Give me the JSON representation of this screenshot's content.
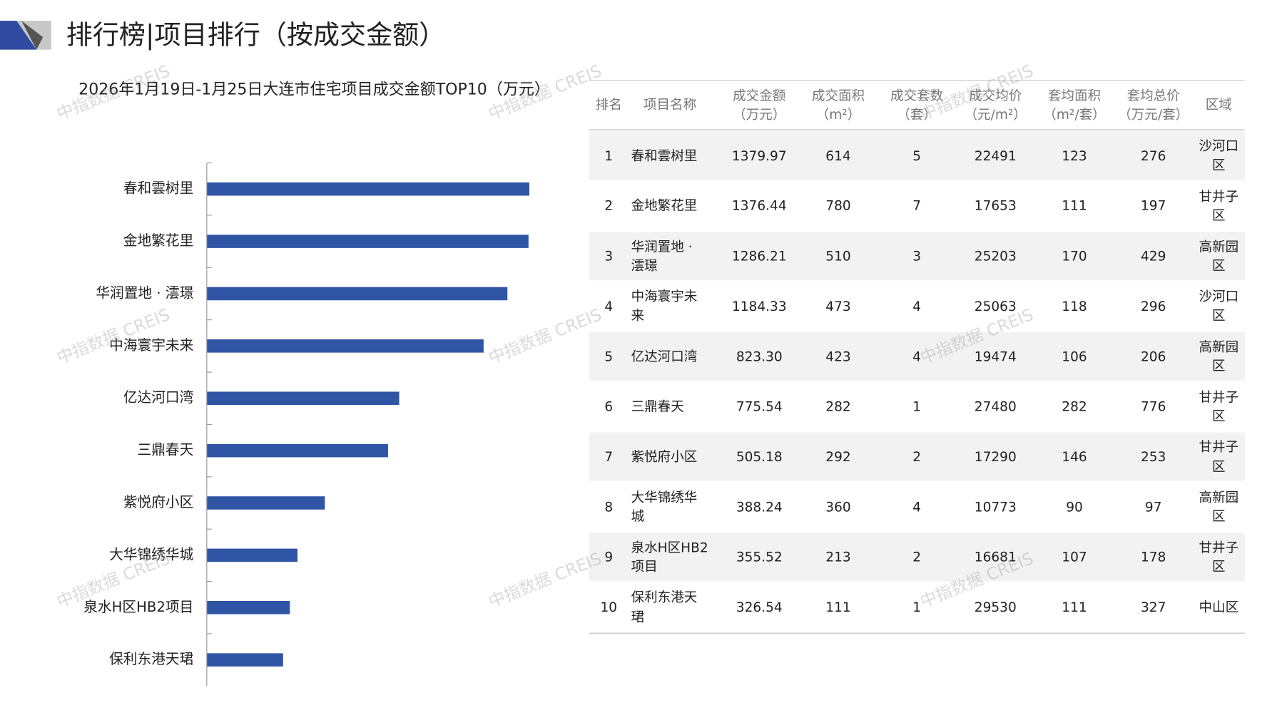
{
  "header": {
    "title": "排行榜|项目排行（按成交金额）"
  },
  "watermark": "中指数据 CREIS",
  "chart_data": {
    "type": "hbar",
    "title": "2026年1月19日-1月25日大连市住宅项目成交金额TOP10（万元）",
    "categories": [
      "春和雲树里",
      "金地繁花里",
      "华润置地 · 澐璟",
      "中海寰宇未来",
      "亿达河口湾",
      "三鼎春天",
      "紫悦府小区",
      "大华锦绣华城",
      "泉水H区HB2项目",
      "保利东港天珺"
    ],
    "values": [
      1379.97,
      1376.44,
      1286.21,
      1184.33,
      823.3,
      775.54,
      505.18,
      388.24,
      355.52,
      326.54
    ],
    "color": "#2f55a4",
    "xlim": [
      0,
      1380
    ]
  },
  "table": {
    "columns": [
      "排名",
      "项目名称",
      "成交金额（万元）",
      "成交面积（m²）",
      "成交套数（套）",
      "成交均价（元/m²）",
      "套均面积（m²/套）",
      "套均总价（万元/套）",
      "区域"
    ],
    "rows": [
      [
        "1",
        "春和雲树里",
        "1379.97",
        "614",
        "5",
        "22491",
        "123",
        "276",
        "沙河口区"
      ],
      [
        "2",
        "金地繁花里",
        "1376.44",
        "780",
        "7",
        "17653",
        "111",
        "197",
        "甘井子区"
      ],
      [
        "3",
        "华润置地 · 澐璟",
        "1286.21",
        "510",
        "3",
        "25203",
        "170",
        "429",
        "高新园区"
      ],
      [
        "4",
        "中海寰宇未来",
        "1184.33",
        "473",
        "4",
        "25063",
        "118",
        "296",
        "沙河口区"
      ],
      [
        "5",
        "亿达河口湾",
        "823.30",
        "423",
        "4",
        "19474",
        "106",
        "206",
        "高新园区"
      ],
      [
        "6",
        "三鼎春天",
        "775.54",
        "282",
        "1",
        "27480",
        "282",
        "776",
        "甘井子区"
      ],
      [
        "7",
        "紫悦府小区",
        "505.18",
        "292",
        "2",
        "17290",
        "146",
        "253",
        "甘井子区"
      ],
      [
        "8",
        "大华锦绣华城",
        "388.24",
        "360",
        "4",
        "10773",
        "90",
        "97",
        "高新园区"
      ],
      [
        "9",
        "泉水H区HB2项目",
        "355.52",
        "213",
        "2",
        "16681",
        "107",
        "178",
        "甘井子区"
      ],
      [
        "10",
        "保利东港天珺",
        "326.54",
        "111",
        "1",
        "29530",
        "111",
        "327",
        "中山区"
      ]
    ]
  }
}
